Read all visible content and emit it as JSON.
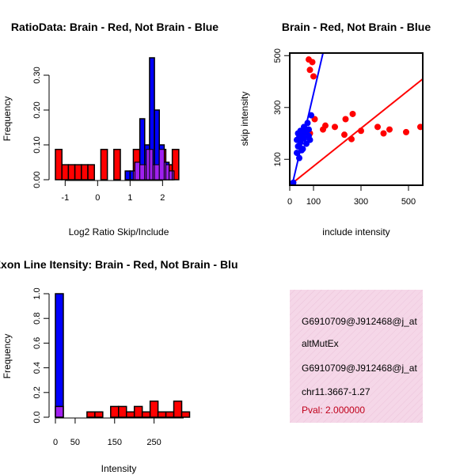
{
  "colors": {
    "red": "#ff0000",
    "blue": "#0000ff",
    "purple": "#a020f0",
    "pink_bg": "#f5d7e8"
  },
  "chart_data": [
    {
      "id": "ratio",
      "type": "bar",
      "title": "RatioData: Brain - Red, Not Brain - Blue",
      "xlabel": "Log2 Ratio Skip/Include",
      "ylabel": "Frequency",
      "xlim": [
        -1.3,
        2.65
      ],
      "ylim": [
        0,
        0.35
      ],
      "xticks": [
        -1,
        0,
        1,
        2
      ],
      "xtick_labels": [
        "-1",
        "0",
        "1",
        "2"
      ],
      "yticks": [
        0.0,
        0.1,
        0.2,
        0.3
      ],
      "ytick_labels": [
        "0.00",
        "0.10",
        "0.20",
        "0.30"
      ],
      "series": [
        {
          "name": "Brain",
          "color": "red",
          "bins": [
            [
              -1.3,
              -1.1,
              0.087
            ],
            [
              -1.1,
              -0.9,
              0.043
            ],
            [
              -0.9,
              -0.7,
              0.043
            ],
            [
              -0.7,
              -0.5,
              0.043
            ],
            [
              -0.5,
              -0.3,
              0.043
            ],
            [
              -0.3,
              -0.1,
              0.043
            ],
            [
              -0.1,
              0.1,
              0.0
            ],
            [
              0.1,
              0.3,
              0.087
            ],
            [
              0.3,
              0.5,
              0.0
            ],
            [
              0.5,
              0.7,
              0.087
            ],
            [
              0.7,
              0.9,
              0.0
            ],
            [
              0.9,
              1.1,
              0.0
            ],
            [
              1.1,
              1.3,
              0.087
            ],
            [
              1.3,
              1.5,
              0.043
            ],
            [
              1.5,
              1.7,
              0.087
            ],
            [
              1.7,
              1.9,
              0.043
            ],
            [
              1.9,
              2.1,
              0.087
            ],
            [
              2.1,
              2.3,
              0.043
            ],
            [
              2.3,
              2.5,
              0.087
            ]
          ]
        },
        {
          "name": "Not Brain",
          "color": "blue",
          "bins": [
            [
              0.85,
              1.0,
              0.025
            ],
            [
              1.0,
              1.15,
              0.025
            ],
            [
              1.15,
              1.3,
              0.05
            ],
            [
              1.3,
              1.45,
              0.175
            ],
            [
              1.45,
              1.6,
              0.1
            ],
            [
              1.6,
              1.75,
              0.35
            ],
            [
              1.75,
              1.9,
              0.2
            ],
            [
              1.9,
              2.05,
              0.1
            ],
            [
              2.05,
              2.2,
              0.05
            ],
            [
              2.2,
              2.35,
              0.025
            ]
          ]
        }
      ]
    },
    {
      "id": "scatter",
      "type": "scatter",
      "title": "Brain - Red, Not Brain - Blue",
      "xlabel": "include intensity",
      "ylabel": "skip intensity",
      "xlim": [
        0,
        560
      ],
      "ylim": [
        0,
        510
      ],
      "xticks": [
        0,
        100,
        300,
        500
      ],
      "xtick_labels": [
        "0",
        "100",
        "300",
        "500"
      ],
      "yticks": [
        100,
        300,
        500
      ],
      "ytick_labels": [
        "100",
        "300",
        "500"
      ],
      "series": [
        {
          "name": "Brain",
          "color": "red",
          "points": [
            [
              80,
              485
            ],
            [
              95,
              475
            ],
            [
              85,
              445
            ],
            [
              100,
              420
            ],
            [
              105,
              255
            ],
            [
              150,
              230
            ],
            [
              140,
              215
            ],
            [
              190,
              225
            ],
            [
              235,
              255
            ],
            [
              265,
              275
            ],
            [
              230,
              195
            ],
            [
              260,
              178
            ],
            [
              300,
              210
            ],
            [
              370,
              225
            ],
            [
              395,
              200
            ],
            [
              420,
              215
            ],
            [
              490,
              205
            ],
            [
              550,
              225
            ],
            [
              85,
              200
            ]
          ],
          "fit_line": [
            [
              0,
              0
            ],
            [
              560,
              410
            ]
          ]
        },
        {
          "name": "Not Brain",
          "color": "blue",
          "points": [
            [
              15,
              10
            ],
            [
              30,
              125
            ],
            [
              35,
              150
            ],
            [
              30,
              175
            ],
            [
              40,
              185
            ],
            [
              45,
              165
            ],
            [
              50,
              200
            ],
            [
              45,
              210
            ],
            [
              55,
              190
            ],
            [
              60,
              225
            ],
            [
              65,
              215
            ],
            [
              55,
              140
            ],
            [
              70,
              205
            ],
            [
              75,
              240
            ],
            [
              80,
              190
            ],
            [
              85,
              175
            ],
            [
              90,
              270
            ],
            [
              40,
              105
            ],
            [
              50,
              135
            ],
            [
              60,
              180
            ],
            [
              70,
              160
            ],
            [
              35,
              200
            ],
            [
              80,
              215
            ]
          ],
          "fit_line": [
            [
              10,
              0
            ],
            [
              140,
              510
            ]
          ]
        }
      ]
    },
    {
      "id": "intensity",
      "type": "bar",
      "title": "Exon Line Itensity: Brain - Red, Not Brain - Blue",
      "xlabel": "Intensity",
      "ylabel": "Frequency",
      "xlim": [
        0,
        325
      ],
      "ylim": [
        0,
        1.0
      ],
      "xticks": [
        0,
        50,
        150,
        250
      ],
      "xtick_labels": [
        "0",
        "50",
        "150",
        "250"
      ],
      "yticks": [
        0.0,
        0.2,
        0.4,
        0.6,
        0.8,
        1.0
      ],
      "ytick_labels": [
        "0.0",
        "0.2",
        "0.4",
        "0.6",
        "0.8",
        "1.0"
      ],
      "series": [
        {
          "name": "Not Brain",
          "color": "blue",
          "bins": [
            [
              0,
              20,
              1.0
            ]
          ]
        },
        {
          "name": "Brain",
          "color": "red",
          "bins": [
            [
              0,
              20,
              0.087
            ],
            [
              20,
              40,
              0.0
            ],
            [
              40,
              60,
              0.0
            ],
            [
              60,
              80,
              0.0
            ],
            [
              80,
              100,
              0.043
            ],
            [
              100,
              120,
              0.043
            ],
            [
              120,
              140,
              0.0
            ],
            [
              140,
              160,
              0.087
            ],
            [
              160,
              180,
              0.087
            ],
            [
              180,
              200,
              0.043
            ],
            [
              200,
              220,
              0.087
            ],
            [
              220,
              240,
              0.043
            ],
            [
              240,
              260,
              0.13
            ],
            [
              260,
              280,
              0.043
            ],
            [
              280,
              300,
              0.043
            ],
            [
              300,
              320,
              0.13
            ],
            [
              320,
              340,
              0.043
            ]
          ]
        }
      ]
    }
  ],
  "info_box": {
    "lines": [
      "G6910709@J912468@j_at",
      "altMutEx",
      "G6910709@J912468@j_at",
      "chr11.3667-1.27"
    ],
    "pval": "Pval: 2.000000"
  }
}
